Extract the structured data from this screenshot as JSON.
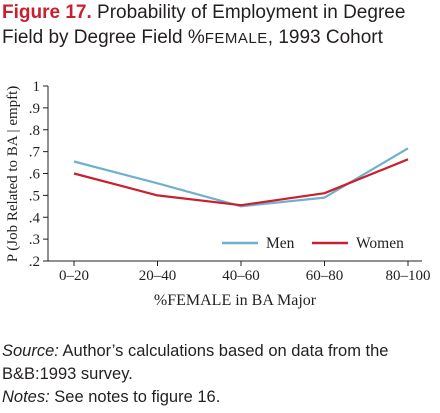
{
  "figure": {
    "label": "Figure 17.",
    "title_part1": " Probability of Employment in Degree Field by Degree Field %",
    "title_smallcaps": "FEMALE",
    "title_part2": ", 1993 Cohort"
  },
  "chart_data": {
    "type": "line",
    "categories": [
      "0–20",
      "20–40",
      "40–60",
      "60–80",
      "80–100"
    ],
    "series": [
      {
        "name": "Men",
        "color": "#6fb0cb",
        "values": [
          0.655,
          0.555,
          0.45,
          0.49,
          0.715
        ]
      },
      {
        "name": "Women",
        "color": "#c8202f",
        "values": [
          0.6,
          0.5,
          0.455,
          0.51,
          0.665
        ]
      }
    ],
    "xlabel": "%FEMALE in BA Major",
    "ylabel": "P (Job Related to BA | empft)",
    "yticks": [
      "1",
      ".9",
      ".8",
      ".7",
      ".6",
      ".5",
      ".4",
      ".3",
      ".2"
    ],
    "ylim": [
      0.2,
      1.0
    ],
    "grid": false,
    "legend_position": "bottom-right"
  },
  "notes": {
    "source_label": "Source:",
    "source_text": " Author’s calculations based on data from the B&B:1993 survey.",
    "notes_label": "Notes:",
    "notes_text": " See notes to figure 16."
  }
}
